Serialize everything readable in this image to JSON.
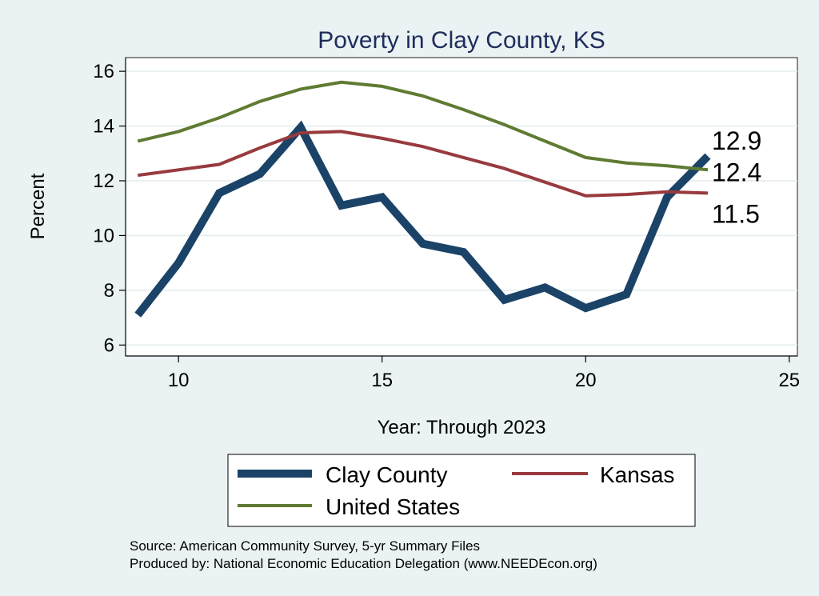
{
  "chart_data": {
    "type": "line",
    "title": "Poverty in Clay County, KS",
    "xlabel": "Year: Through 2023",
    "ylabel": "Percent",
    "xlim": [
      8.7,
      25.2
    ],
    "ylim": [
      5.6,
      16.5
    ],
    "xticks": [
      "10",
      "15",
      "20",
      "25"
    ],
    "yticks": [
      "6",
      "8",
      "10",
      "12",
      "14",
      "16"
    ],
    "grid": true,
    "x": [
      9,
      10,
      11,
      12,
      13,
      14,
      15,
      16,
      17,
      18,
      19,
      20,
      21,
      22,
      23
    ],
    "series": [
      {
        "name": "Clay County",
        "color": "#1b4368",
        "values": [
          7.1,
          9.0,
          11.55,
          12.25,
          13.95,
          11.1,
          11.4,
          9.7,
          9.4,
          7.65,
          8.1,
          7.35,
          7.85,
          11.4,
          12.9
        ],
        "end_label": "12.9"
      },
      {
        "name": "Kansas",
        "color": "#983a3e",
        "values": [
          12.2,
          12.4,
          12.6,
          13.2,
          13.75,
          13.8,
          13.55,
          13.25,
          12.85,
          12.45,
          11.95,
          11.45,
          11.5,
          11.6,
          11.55
        ],
        "end_label": "11.5"
      },
      {
        "name": "United States",
        "color": "#5f7b32",
        "values": [
          13.45,
          13.8,
          14.3,
          14.9,
          15.35,
          15.6,
          15.45,
          15.1,
          14.6,
          14.05,
          13.45,
          12.85,
          12.65,
          12.55,
          12.4
        ],
        "end_label": "12.4"
      }
    ],
    "legend": {
      "placement": "bottom"
    },
    "notes": [
      "Source: American Community Survey, 5-yr Summary Files",
      "Produced by: National Economic Education Delegation (www.NEEDEcon.org)"
    ]
  }
}
